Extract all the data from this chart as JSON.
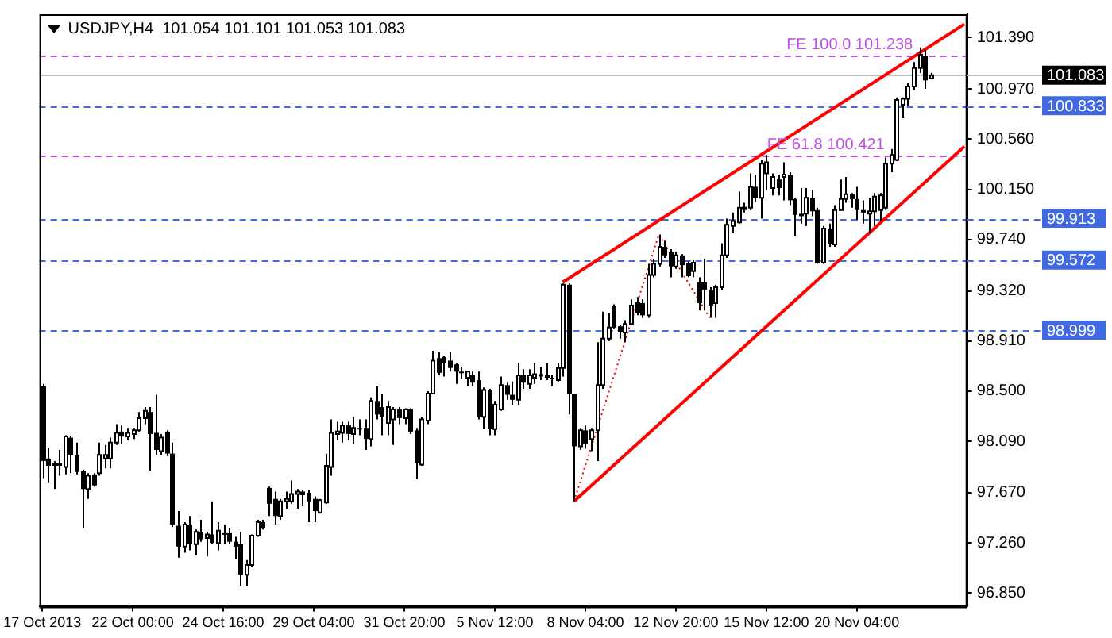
{
  "chart_data": {
    "type": "candlestick",
    "title": "USDJPY,H4  101.054 101.101 101.053 101.083",
    "categories": [
      "17 Oct 2013",
      null,
      null,
      null,
      null,
      null,
      null,
      null,
      null,
      null,
      null,
      null,
      null,
      null,
      null,
      null,
      "22 Oct 00:00",
      null,
      null,
      null,
      null,
      null,
      null,
      null,
      null,
      null,
      null,
      null,
      null,
      null,
      null,
      null,
      "24 Oct 16:00",
      null,
      null,
      null,
      null,
      null,
      null,
      null,
      null,
      null,
      null,
      null,
      null,
      null,
      null,
      null,
      "29 Oct 04:00",
      null,
      null,
      null,
      null,
      null,
      null,
      null,
      null,
      null,
      null,
      null,
      null,
      null,
      null,
      null,
      "31 Oct 20:00",
      null,
      null,
      null,
      null,
      null,
      null,
      null,
      null,
      null,
      null,
      null,
      null,
      null,
      null,
      null,
      "5 Nov 12:00",
      null,
      null,
      null,
      null,
      null,
      null,
      null,
      null,
      null,
      null,
      null,
      null,
      null,
      null,
      null,
      "8 Nov 04:00",
      null,
      null,
      null,
      null,
      null,
      null,
      null,
      null,
      null,
      null,
      null,
      null,
      null,
      null,
      null,
      "12 Nov 20:00",
      null,
      null,
      null,
      null,
      null,
      null,
      null,
      null,
      null,
      null,
      null,
      null,
      null,
      null,
      null,
      "15 Nov 12:00",
      null,
      null,
      null,
      null,
      null,
      null,
      null,
      null,
      null,
      null,
      null,
      null,
      null,
      null,
      null,
      "20 Nov 04:00",
      null,
      null,
      null,
      null,
      null,
      null,
      null,
      null,
      null,
      null,
      null,
      null,
      null,
      null,
      null,
      null,
      null,
      null,
      null
    ],
    "ohlc": [
      [
        98.54,
        98.56,
        97.79,
        97.93
      ],
      [
        97.95,
        98.04,
        97.75,
        97.89
      ],
      [
        97.91,
        97.93,
        97.7,
        97.89
      ],
      [
        97.9,
        98.02,
        97.81,
        97.91
      ],
      [
        97.88,
        98.14,
        97.82,
        98.13
      ],
      [
        98.12,
        98.13,
        97.83,
        97.98
      ],
      [
        97.98,
        98.08,
        97.82,
        97.84
      ],
      [
        97.85,
        97.86,
        97.38,
        97.7
      ],
      [
        97.7,
        97.83,
        97.62,
        97.81
      ],
      [
        97.82,
        97.83,
        97.72,
        97.73
      ],
      [
        97.83,
        98.08,
        97.81,
        97.98
      ],
      [
        97.95,
        98.06,
        97.87,
        97.98
      ],
      [
        97.95,
        98.12,
        97.87,
        98.08
      ],
      [
        98.08,
        98.23,
        98.06,
        98.16
      ],
      [
        98.17,
        98.22,
        98.07,
        98.13
      ],
      [
        98.13,
        98.2,
        98.1,
        98.16
      ],
      [
        98.15,
        98.2,
        98.11,
        98.18
      ],
      [
        98.18,
        98.33,
        98.17,
        98.28
      ],
      [
        98.28,
        98.37,
        98.23,
        98.34
      ],
      [
        98.33,
        98.37,
        97.85,
        98.15
      ],
      [
        98.16,
        98.47,
        97.98,
        98.02
      ],
      [
        98.01,
        98.15,
        97.98,
        98.12
      ],
      [
        98.17,
        98.18,
        97.97,
        97.99
      ],
      [
        97.99,
        98.08,
        97.39,
        97.41
      ],
      [
        97.4,
        97.52,
        97.14,
        97.23
      ],
      [
        97.23,
        97.43,
        97.18,
        97.41
      ],
      [
        97.41,
        97.48,
        97.2,
        97.25
      ],
      [
        97.25,
        97.37,
        97.16,
        97.35
      ],
      [
        97.35,
        97.45,
        97.27,
        97.29
      ],
      [
        97.3,
        97.35,
        97.15,
        97.33
      ],
      [
        97.33,
        97.6,
        97.25,
        97.26
      ],
      [
        97.26,
        97.43,
        97.2,
        97.36
      ],
      [
        97.34,
        97.41,
        97.25,
        97.33
      ],
      [
        97.34,
        97.38,
        97.25,
        97.27
      ],
      [
        97.27,
        97.31,
        97.13,
        97.23
      ],
      [
        97.25,
        97.35,
        96.91,
        97
      ],
      [
        97,
        97.12,
        96.91,
        97.08
      ],
      [
        97.08,
        97.33,
        97.06,
        97.32
      ],
      [
        97.32,
        97.45,
        97.31,
        97.43
      ],
      [
        97.43,
        97.45,
        97.37,
        97.38
      ],
      [
        97.71,
        97.72,
        97.48,
        97.58
      ],
      [
        97.62,
        97.68,
        97.41,
        97.48
      ],
      [
        97.48,
        97.62,
        97.45,
        97.6
      ],
      [
        97.6,
        97.68,
        97.54,
        97.62
      ],
      [
        97.6,
        97.77,
        97.58,
        97.66
      ],
      [
        97.66,
        97.7,
        97.54,
        97.68
      ],
      [
        97.68,
        97.69,
        97.56,
        97.65
      ],
      [
        97.67,
        97.69,
        97.43,
        97.6
      ],
      [
        97.62,
        97.64,
        97.43,
        97.52
      ],
      [
        97.51,
        97.62,
        97.5,
        97.61
      ],
      [
        97.59,
        97.99,
        97.58,
        97.89
      ],
      [
        97.88,
        98.27,
        97.81,
        98.16
      ],
      [
        98.15,
        98.25,
        98.1,
        98.17
      ],
      [
        98.16,
        98.25,
        98.08,
        98.22
      ],
      [
        98.22,
        98.25,
        98.1,
        98.15
      ],
      [
        98.15,
        98.29,
        98.07,
        98.2
      ],
      [
        98.2,
        98.27,
        98.14,
        98.19
      ],
      [
        98.2,
        98.27,
        98.02,
        98.11
      ],
      [
        98.11,
        98.45,
        98.05,
        98.42
      ],
      [
        98.42,
        98.54,
        98.27,
        98.31
      ],
      [
        98.37,
        98.48,
        98.14,
        98.29
      ],
      [
        98.24,
        98.42,
        98.14,
        98.37
      ],
      [
        98.27,
        98.37,
        98.06,
        98.35
      ],
      [
        98.35,
        98.37,
        98.23,
        98.28
      ],
      [
        98.28,
        98.36,
        98.23,
        98.35
      ],
      [
        98.35,
        98.36,
        98.15,
        98.17
      ],
      [
        98.18,
        98.2,
        97.78,
        97.91
      ],
      [
        97.9,
        98.29,
        97.89,
        98.27
      ],
      [
        98.26,
        98.5,
        98.23,
        98.48
      ],
      [
        98.48,
        98.83,
        98.48,
        98.75
      ],
      [
        98.77,
        98.82,
        98.63,
        98.65
      ],
      [
        98.78,
        98.79,
        98.62,
        98.73
      ],
      [
        98.75,
        98.82,
        98.66,
        98.69
      ],
      [
        98.72,
        98.73,
        98.56,
        98.66
      ],
      [
        98.66,
        98.7,
        98.6,
        98.65
      ],
      [
        98.61,
        98.66,
        98.54,
        98.66
      ],
      [
        98.63,
        98.66,
        98.54,
        98.57
      ],
      [
        98.59,
        98.66,
        98.27,
        98.29
      ],
      [
        98.29,
        98.53,
        98.19,
        98.51
      ],
      [
        98.51,
        98.52,
        98.14,
        98.19
      ],
      [
        98.19,
        98.42,
        98.14,
        98.39
      ],
      [
        98.35,
        98.62,
        98.34,
        98.55
      ],
      [
        98.55,
        98.57,
        98.43,
        98.47
      ],
      [
        98.47,
        98.58,
        98.39,
        98.43
      ],
      [
        98.43,
        98.73,
        98.39,
        98.63
      ],
      [
        98.63,
        98.68,
        98.52,
        98.57
      ],
      [
        98.56,
        98.68,
        98.52,
        98.63
      ],
      [
        98.61,
        98.73,
        98.56,
        98.64
      ],
      [
        98.64,
        98.7,
        98.59,
        98.62
      ],
      [
        98.63,
        98.73,
        98.59,
        98.61
      ],
      [
        98.61,
        98.63,
        98.54,
        98.6
      ],
      [
        98.59,
        98.73,
        98.58,
        98.69
      ],
      [
        98.69,
        99.38,
        98.62,
        99.37
      ],
      [
        99.37,
        99.38,
        98.31,
        98.48
      ],
      [
        98.48,
        98.48,
        97.6,
        98.05
      ],
      [
        98.05,
        98.2,
        98.02,
        98.18
      ],
      [
        98.18,
        98.22,
        98.03,
        98.07
      ],
      [
        98.11,
        98.2,
        98.01,
        98.18
      ],
      [
        98.18,
        98.9,
        97.93,
        98.55
      ],
      [
        98.55,
        99.15,
        98.52,
        98.93
      ],
      [
        98.93,
        99.14,
        98.91,
        99.02
      ],
      [
        99.2,
        99.21,
        99.01,
        99.02
      ],
      [
        99.03,
        99.04,
        98.93,
        98.98
      ],
      [
        98.98,
        99.08,
        98.9,
        99.05
      ],
      [
        99.05,
        99.25,
        99.04,
        99.2
      ],
      [
        99.23,
        99.27,
        99.12,
        99.14
      ],
      [
        99.22,
        99.25,
        99.1,
        99.12
      ],
      [
        99.12,
        99.54,
        99.1,
        99.45
      ],
      [
        99.45,
        99.58,
        99.43,
        99.54
      ],
      [
        99.54,
        99.78,
        99.52,
        99.68
      ],
      [
        99.68,
        99.73,
        99.59,
        99.61
      ],
      [
        99.64,
        99.66,
        99.43,
        99.52
      ],
      [
        99.52,
        99.64,
        99.5,
        99.61
      ],
      [
        99.61,
        99.62,
        99.43,
        99.53
      ],
      [
        99.55,
        99.56,
        99.43,
        99.44
      ],
      [
        99.48,
        99.57,
        99.43,
        99.55
      ],
      [
        99.39,
        99.43,
        99.16,
        99.22
      ],
      [
        99.39,
        99.58,
        99.16,
        99.33
      ],
      [
        99.33,
        99.35,
        99.1,
        99.2
      ],
      [
        99.22,
        99.37,
        99.1,
        99.35
      ],
      [
        99.35,
        99.71,
        99.33,
        99.61
      ],
      [
        99.61,
        99.91,
        99.59,
        99.86
      ],
      [
        99.85,
        99.96,
        99.79,
        99.89
      ],
      [
        99.88,
        100.13,
        99.87,
        100
      ],
      [
        99.99,
        100.04,
        99.96,
        100
      ],
      [
        100,
        100.28,
        99.98,
        100.17
      ],
      [
        100.17,
        100.27,
        100.05,
        100.08
      ],
      [
        100.08,
        100.39,
        99.91,
        100.36
      ],
      [
        100.28,
        100.43,
        100.14,
        100.37
      ],
      [
        100.16,
        100.28,
        100.1,
        100.25
      ],
      [
        100.23,
        100.27,
        100.1,
        100.16
      ],
      [
        100.25,
        100.37,
        100.06,
        100.27
      ],
      [
        100.27,
        100.29,
        100.02,
        100.06
      ],
      [
        100.07,
        100.08,
        99.77,
        99.94
      ],
      [
        99.95,
        100.16,
        99.87,
        99.93
      ],
      [
        99.95,
        100.16,
        99.85,
        100.08
      ],
      [
        100.08,
        100.14,
        99.93,
        99.97
      ],
      [
        99.98,
        100,
        99.54,
        99.55
      ],
      [
        99.55,
        99.85,
        99.54,
        99.83
      ],
      [
        99.83,
        99.87,
        99.68,
        99.7
      ],
      [
        99.7,
        100.02,
        99.68,
        99.98
      ],
      [
        99.98,
        100.23,
        99.98,
        100.07
      ],
      [
        100.07,
        100.25,
        100.04,
        100.11
      ],
      [
        100.11,
        100.12,
        100,
        100.07
      ],
      [
        100.07,
        100.17,
        99.9,
        99.98
      ],
      [
        99.98,
        100.06,
        99.87,
        99.96
      ],
      [
        99.95,
        100.08,
        99.79,
        99.97
      ],
      [
        99.97,
        100.12,
        99.85,
        100.09
      ],
      [
        99.98,
        100.12,
        99.89,
        100.1
      ],
      [
        100,
        100.41,
        99.98,
        100.36
      ],
      [
        100.36,
        100.48,
        100.29,
        100.43
      ],
      [
        100.39,
        100.9,
        100.38,
        100.88
      ],
      [
        100.84,
        100.9,
        100.73,
        100.89
      ],
      [
        100.89,
        101.02,
        100.83,
        100.99
      ],
      [
        100.99,
        101.19,
        100.96,
        101.14
      ],
      [
        101.14,
        101.31,
        101.1,
        101.25
      ],
      [
        101.24,
        101.29,
        100.97,
        101.04
      ],
      [
        101.054,
        101.101,
        101.053,
        101.083
      ],
      null,
      null,
      null,
      null,
      null,
      null
    ],
    "series": [
      {
        "type": "line",
        "color": "#ff0000",
        "line_style": "solid",
        "values": [
          null,
          null,
          null,
          null,
          null,
          null,
          null,
          null,
          null,
          null,
          null,
          null,
          null,
          null,
          null,
          null,
          null,
          null,
          null,
          null,
          null,
          null,
          null,
          null,
          null,
          null,
          null,
          null,
          null,
          null,
          null,
          null,
          null,
          null,
          null,
          null,
          null,
          null,
          null,
          null,
          null,
          null,
          null,
          null,
          null,
          null,
          null,
          null,
          null,
          null,
          null,
          null,
          null,
          null,
          null,
          null,
          null,
          null,
          null,
          null,
          null,
          null,
          null,
          null,
          null,
          null,
          null,
          null,
          null,
          null,
          null,
          null,
          null,
          null,
          null,
          null,
          null,
          null,
          null,
          null,
          null,
          null,
          null,
          null,
          null,
          null,
          null,
          null,
          null,
          null,
          null,
          null,
          99.39,
          null,
          null,
          null,
          null,
          null,
          null,
          null,
          null,
          null,
          null,
          null,
          null,
          null,
          null,
          null,
          null,
          null,
          null,
          null,
          null,
          null,
          null,
          null,
          null,
          null,
          null,
          null,
          null,
          null,
          null,
          null,
          null,
          null,
          null,
          null,
          null,
          null,
          null,
          null,
          null,
          null,
          null,
          null,
          null,
          null,
          null,
          null,
          null,
          null,
          null,
          null,
          null,
          null,
          null,
          null,
          null,
          null,
          null,
          null,
          null,
          null,
          null,
          null,
          null,
          null,
          null,
          null,
          null,
          null,
          null,
          101.5
        ]
      },
      {
        "type": "line",
        "color": "#ff0000",
        "line_style": "solid",
        "values": [
          null,
          null,
          null,
          null,
          null,
          null,
          null,
          null,
          null,
          null,
          null,
          null,
          null,
          null,
          null,
          null,
          null,
          null,
          null,
          null,
          null,
          null,
          null,
          null,
          null,
          null,
          null,
          null,
          null,
          null,
          null,
          null,
          null,
          null,
          null,
          null,
          null,
          null,
          null,
          null,
          null,
          null,
          null,
          null,
          null,
          null,
          null,
          null,
          null,
          null,
          null,
          null,
          null,
          null,
          null,
          null,
          null,
          null,
          null,
          null,
          null,
          null,
          null,
          null,
          null,
          null,
          null,
          null,
          null,
          null,
          null,
          null,
          null,
          null,
          null,
          null,
          null,
          null,
          null,
          null,
          null,
          null,
          null,
          null,
          null,
          null,
          null,
          null,
          null,
          null,
          null,
          null,
          null,
          null,
          97.6,
          null,
          null,
          null,
          null,
          null,
          null,
          null,
          null,
          null,
          null,
          null,
          null,
          null,
          null,
          null,
          null,
          null,
          null,
          null,
          null,
          null,
          null,
          null,
          null,
          null,
          null,
          null,
          null,
          null,
          null,
          null,
          null,
          null,
          null,
          null,
          null,
          null,
          null,
          null,
          null,
          null,
          null,
          null,
          null,
          null,
          null,
          null,
          null,
          null,
          null,
          null,
          null,
          null,
          null,
          null,
          null,
          null,
          null,
          null,
          null,
          null,
          null,
          null,
          null,
          null,
          null,
          null,
          null,
          100.5
        ]
      },
      {
        "type": "line",
        "color": "#ff0000",
        "line_style": "dotted",
        "values": [
          null,
          null,
          null,
          null,
          null,
          null,
          null,
          null,
          null,
          null,
          null,
          null,
          null,
          null,
          null,
          null,
          null,
          null,
          null,
          null,
          null,
          null,
          null,
          null,
          null,
          null,
          null,
          null,
          null,
          null,
          null,
          null,
          null,
          null,
          null,
          null,
          null,
          null,
          null,
          null,
          null,
          null,
          null,
          null,
          null,
          null,
          null,
          null,
          null,
          null,
          null,
          null,
          null,
          null,
          null,
          null,
          null,
          null,
          null,
          null,
          null,
          null,
          null,
          null,
          null,
          null,
          null,
          null,
          null,
          null,
          null,
          null,
          null,
          null,
          null,
          null,
          null,
          null,
          null,
          null,
          null,
          null,
          null,
          null,
          null,
          null,
          null,
          null,
          null,
          null,
          null,
          null,
          null,
          null,
          97.6,
          null,
          null,
          null,
          null,
          null,
          null,
          null,
          null,
          null,
          null,
          null,
          null,
          null,
          null,
          99.78,
          null,
          null,
          null,
          null,
          null,
          null,
          null,
          null,
          99.1,
          null,
          null,
          null,
          null,
          null,
          null,
          null,
          null,
          null,
          null,
          null,
          null,
          null,
          null,
          null,
          null,
          null,
          null,
          null,
          null,
          null,
          null,
          null,
          null,
          null,
          null,
          null,
          null,
          null,
          null,
          null,
          null,
          null,
          null,
          null,
          null,
          null,
          null,
          null,
          null,
          null,
          null,
          null,
          null,
          null
        ]
      }
    ],
    "ylim": [
      96.74,
      101.58
    ],
    "yticks": [
      {
        "value": 96.85,
        "label": "96.850"
      },
      {
        "value": 97.26,
        "label": "97.260"
      },
      {
        "value": 97.67,
        "label": "97.670"
      },
      {
        "value": 98.09,
        "label": "98.090"
      },
      {
        "value": 98.5,
        "label": "98.500"
      },
      {
        "value": 98.91,
        "label": "98.910"
      },
      {
        "value": 99.32,
        "label": "99.320"
      },
      {
        "value": 99.74,
        "label": "99.740"
      },
      {
        "value": 100.15,
        "label": "100.150"
      },
      {
        "value": 100.56,
        "label": "100.560"
      },
      {
        "value": 100.97,
        "label": "100.970"
      },
      {
        "value": 101.39,
        "label": "101.390"
      }
    ],
    "ref_lines": [
      {
        "axis": "y",
        "value": 101.083,
        "label": "101.083",
        "color": "#c0c0c0",
        "line_style": "solid"
      },
      {
        "axis": "y",
        "value": 100.833,
        "label": "100.833",
        "color": "#4169e1",
        "line_style": "dashed"
      },
      {
        "axis": "y",
        "value": 99.913,
        "label": "99.913",
        "color": "#4169e1",
        "line_style": "dashed"
      },
      {
        "axis": "y",
        "value": 99.572,
        "label": "99.572",
        "color": "#4169e1",
        "line_style": "dashed"
      },
      {
        "axis": "y",
        "value": 98.999,
        "label": "98.999",
        "color": "#4169e1",
        "line_style": "dashed"
      },
      {
        "axis": "y",
        "value": 101.238,
        "color": "#c050e0",
        "line_style": "dashed"
      },
      {
        "axis": "y",
        "value": 100.421,
        "color": "#c050e0",
        "line_style": "dashed"
      }
    ],
    "annotations": [
      {
        "text": "FE 100.0 101.238",
        "y": 101.238
      },
      {
        "text": "FE 61.8 100.421",
        "y": 100.421
      }
    ],
    "legend": false,
    "grid": false
  }
}
